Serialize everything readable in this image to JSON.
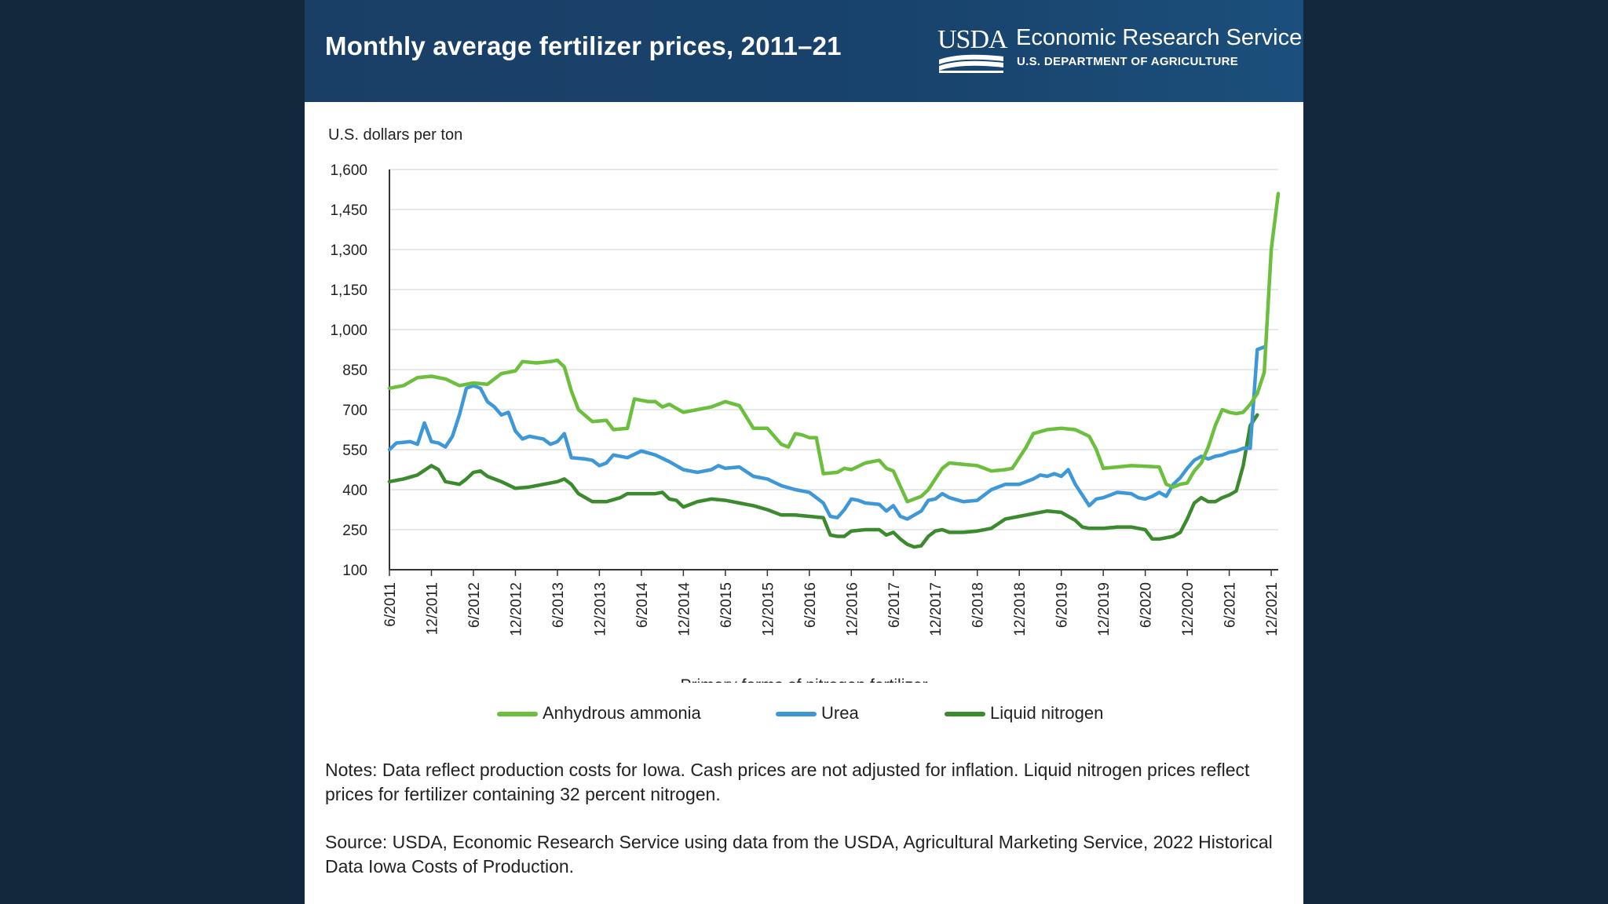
{
  "header": {
    "title": "Monthly average fertilizer prices, 2011–21",
    "logo_text": "USDA",
    "agency": "Economic Research Service",
    "department": "U.S. DEPARTMENT OF AGRICULTURE"
  },
  "notes": "Notes: Data reflect production costs for Iowa. Cash prices are not adjusted for inflation. Liquid nitrogen prices reflect prices for fertilizer containing 32 percent nitrogen.",
  "source": "Source: USDA, Economic Research Service using data from the USDA, Agricultural Marketing Service, 2022 Historical Data Iowa Costs of Production.",
  "colors": {
    "background": "#14283d",
    "banner": "#1a3f66",
    "anhydrous_ammonia": "#6bbf3d",
    "urea": "#3e98d8",
    "liquid_nitrogen": "#3c8a2e"
  },
  "chart_data": {
    "type": "line",
    "title": "Monthly average fertilizer prices, 2011–21",
    "ylabel": "U.S. dollars per ton",
    "xlabel": "Primary forms of nitrogen fertilizer",
    "ylim": [
      100,
      1600
    ],
    "yticks": [
      100,
      250,
      400,
      550,
      700,
      850,
      1000,
      1150,
      1300,
      1450,
      1600
    ],
    "ytick_labels": [
      "100",
      "250",
      "400",
      "550",
      "700",
      "850",
      "1,000",
      "1,150",
      "1,300",
      "1,450",
      "1,600"
    ],
    "xtick_labels": [
      "6/2011",
      "12/2011",
      "6/2012",
      "12/2012",
      "6/2013",
      "12/2013",
      "6/2014",
      "12/2014",
      "6/2015",
      "12/2015",
      "6/2016",
      "12/2016",
      "6/2017",
      "12/2017",
      "6/2018",
      "12/2018",
      "6/2019",
      "12/2019",
      "6/2020",
      "12/2020",
      "6/2021",
      "12/2021"
    ],
    "x_months_from_start": [
      0,
      6,
      12,
      18,
      24,
      30,
      36,
      42,
      48,
      54,
      60,
      66,
      72,
      78,
      84,
      90,
      96,
      102,
      108,
      114,
      120,
      126
    ],
    "grid": true,
    "legend_position": "bottom",
    "series": [
      {
        "name": "Anhydrous ammonia",
        "values": [
          [
            0,
            780
          ],
          [
            2,
            790
          ],
          [
            4,
            820
          ],
          [
            6,
            825
          ],
          [
            8,
            815
          ],
          [
            10,
            790
          ],
          [
            12,
            800
          ],
          [
            14,
            795
          ],
          [
            16,
            835
          ],
          [
            18,
            845
          ],
          [
            19,
            880
          ],
          [
            21,
            875
          ],
          [
            23,
            880
          ],
          [
            24,
            885
          ],
          [
            25,
            860
          ],
          [
            26,
            770
          ],
          [
            27,
            700
          ],
          [
            29,
            655
          ],
          [
            31,
            660
          ],
          [
            32,
            625
          ],
          [
            34,
            630
          ],
          [
            35,
            740
          ],
          [
            37,
            730
          ],
          [
            38,
            730
          ],
          [
            39,
            710
          ],
          [
            40,
            720
          ],
          [
            42,
            690
          ],
          [
            44,
            700
          ],
          [
            46,
            710
          ],
          [
            48,
            730
          ],
          [
            50,
            715
          ],
          [
            52,
            630
          ],
          [
            54,
            630
          ],
          [
            56,
            570
          ],
          [
            57,
            560
          ],
          [
            58,
            610
          ],
          [
            59,
            605
          ],
          [
            60,
            595
          ],
          [
            61,
            595
          ],
          [
            62,
            460
          ],
          [
            64,
            465
          ],
          [
            65,
            480
          ],
          [
            66,
            475
          ],
          [
            68,
            500
          ],
          [
            70,
            510
          ],
          [
            71,
            480
          ],
          [
            72,
            470
          ],
          [
            74,
            355
          ],
          [
            76,
            375
          ],
          [
            77,
            400
          ],
          [
            78,
            440
          ],
          [
            79,
            480
          ],
          [
            80,
            500
          ],
          [
            82,
            495
          ],
          [
            84,
            490
          ],
          [
            86,
            470
          ],
          [
            88,
            475
          ],
          [
            89,
            480
          ],
          [
            91,
            560
          ],
          [
            92,
            610
          ],
          [
            94,
            625
          ],
          [
            96,
            630
          ],
          [
            98,
            625
          ],
          [
            100,
            600
          ],
          [
            101,
            550
          ],
          [
            102,
            480
          ],
          [
            104,
            485
          ],
          [
            106,
            490
          ],
          [
            108,
            488
          ],
          [
            110,
            485
          ],
          [
            111,
            420
          ],
          [
            112,
            410
          ],
          [
            113,
            420
          ],
          [
            114,
            425
          ],
          [
            115,
            470
          ],
          [
            116,
            500
          ],
          [
            117,
            560
          ],
          [
            118,
            640
          ],
          [
            119,
            700
          ],
          [
            120,
            690
          ],
          [
            121,
            685
          ],
          [
            122,
            690
          ],
          [
            123,
            720
          ],
          [
            124,
            760
          ],
          [
            125,
            840
          ],
          [
            126,
            1300
          ],
          [
            127,
            1510
          ]
        ]
      },
      {
        "name": "Urea",
        "values": [
          [
            0,
            550
          ],
          [
            1,
            575
          ],
          [
            3,
            580
          ],
          [
            4,
            570
          ],
          [
            5,
            650
          ],
          [
            6,
            580
          ],
          [
            7,
            575
          ],
          [
            8,
            560
          ],
          [
            9,
            600
          ],
          [
            10,
            680
          ],
          [
            11,
            780
          ],
          [
            12,
            790
          ],
          [
            13,
            780
          ],
          [
            14,
            730
          ],
          [
            15,
            710
          ],
          [
            16,
            680
          ],
          [
            17,
            690
          ],
          [
            18,
            620
          ],
          [
            19,
            590
          ],
          [
            20,
            600
          ],
          [
            22,
            590
          ],
          [
            23,
            570
          ],
          [
            24,
            580
          ],
          [
            25,
            610
          ],
          [
            26,
            520
          ],
          [
            28,
            515
          ],
          [
            29,
            510
          ],
          [
            30,
            490
          ],
          [
            31,
            500
          ],
          [
            32,
            530
          ],
          [
            34,
            520
          ],
          [
            36,
            545
          ],
          [
            38,
            530
          ],
          [
            40,
            505
          ],
          [
            42,
            475
          ],
          [
            44,
            465
          ],
          [
            46,
            475
          ],
          [
            47,
            490
          ],
          [
            48,
            480
          ],
          [
            50,
            485
          ],
          [
            52,
            450
          ],
          [
            54,
            440
          ],
          [
            56,
            415
          ],
          [
            58,
            400
          ],
          [
            60,
            390
          ],
          [
            62,
            350
          ],
          [
            63,
            300
          ],
          [
            64,
            295
          ],
          [
            65,
            325
          ],
          [
            66,
            365
          ],
          [
            67,
            360
          ],
          [
            68,
            350
          ],
          [
            70,
            345
          ],
          [
            71,
            320
          ],
          [
            72,
            340
          ],
          [
            73,
            300
          ],
          [
            74,
            290
          ],
          [
            75,
            305
          ],
          [
            76,
            320
          ],
          [
            77,
            360
          ],
          [
            78,
            365
          ],
          [
            79,
            385
          ],
          [
            80,
            370
          ],
          [
            82,
            355
          ],
          [
            84,
            360
          ],
          [
            86,
            400
          ],
          [
            88,
            420
          ],
          [
            90,
            420
          ],
          [
            92,
            440
          ],
          [
            93,
            455
          ],
          [
            94,
            450
          ],
          [
            95,
            460
          ],
          [
            96,
            450
          ],
          [
            97,
            475
          ],
          [
            98,
            420
          ],
          [
            99,
            380
          ],
          [
            100,
            340
          ],
          [
            101,
            365
          ],
          [
            102,
            370
          ],
          [
            103,
            380
          ],
          [
            104,
            390
          ],
          [
            106,
            385
          ],
          [
            107,
            370
          ],
          [
            108,
            365
          ],
          [
            109,
            375
          ],
          [
            110,
            390
          ],
          [
            111,
            375
          ],
          [
            112,
            420
          ],
          [
            113,
            445
          ],
          [
            114,
            480
          ],
          [
            115,
            510
          ],
          [
            116,
            525
          ],
          [
            117,
            515
          ],
          [
            118,
            525
          ],
          [
            119,
            530
          ],
          [
            120,
            540
          ],
          [
            121,
            545
          ],
          [
            122,
            555
          ],
          [
            123,
            555
          ],
          [
            124,
            925
          ],
          [
            125,
            935
          ]
        ]
      },
      {
        "name": "Liquid nitrogen",
        "values": [
          [
            0,
            430
          ],
          [
            2,
            440
          ],
          [
            4,
            455
          ],
          [
            6,
            490
          ],
          [
            7,
            475
          ],
          [
            8,
            430
          ],
          [
            10,
            420
          ],
          [
            11,
            440
          ],
          [
            12,
            465
          ],
          [
            13,
            470
          ],
          [
            14,
            450
          ],
          [
            16,
            430
          ],
          [
            18,
            405
          ],
          [
            20,
            410
          ],
          [
            22,
            420
          ],
          [
            24,
            430
          ],
          [
            25,
            440
          ],
          [
            26,
            420
          ],
          [
            27,
            385
          ],
          [
            29,
            355
          ],
          [
            31,
            355
          ],
          [
            33,
            370
          ],
          [
            34,
            385
          ],
          [
            36,
            385
          ],
          [
            38,
            385
          ],
          [
            39,
            390
          ],
          [
            40,
            365
          ],
          [
            41,
            360
          ],
          [
            42,
            335
          ],
          [
            44,
            355
          ],
          [
            46,
            365
          ],
          [
            48,
            360
          ],
          [
            50,
            350
          ],
          [
            52,
            340
          ],
          [
            54,
            325
          ],
          [
            56,
            305
          ],
          [
            58,
            305
          ],
          [
            60,
            300
          ],
          [
            62,
            295
          ],
          [
            63,
            230
          ],
          [
            64,
            225
          ],
          [
            65,
            225
          ],
          [
            66,
            245
          ],
          [
            68,
            250
          ],
          [
            70,
            250
          ],
          [
            71,
            230
          ],
          [
            72,
            240
          ],
          [
            73,
            215
          ],
          [
            74,
            195
          ],
          [
            75,
            185
          ],
          [
            76,
            190
          ],
          [
            77,
            225
          ],
          [
            78,
            245
          ],
          [
            79,
            250
          ],
          [
            80,
            240
          ],
          [
            82,
            240
          ],
          [
            84,
            245
          ],
          [
            86,
            255
          ],
          [
            88,
            290
          ],
          [
            90,
            300
          ],
          [
            92,
            310
          ],
          [
            94,
            320
          ],
          [
            96,
            315
          ],
          [
            97,
            300
          ],
          [
            98,
            285
          ],
          [
            99,
            260
          ],
          [
            100,
            255
          ],
          [
            102,
            255
          ],
          [
            104,
            260
          ],
          [
            106,
            260
          ],
          [
            108,
            250
          ],
          [
            109,
            215
          ],
          [
            110,
            215
          ],
          [
            112,
            225
          ],
          [
            113,
            240
          ],
          [
            114,
            290
          ],
          [
            115,
            350
          ],
          [
            116,
            370
          ],
          [
            117,
            355
          ],
          [
            118,
            355
          ],
          [
            119,
            370
          ],
          [
            120,
            380
          ],
          [
            121,
            395
          ],
          [
            122,
            490
          ],
          [
            123,
            640
          ],
          [
            124,
            680
          ]
        ]
      }
    ]
  }
}
